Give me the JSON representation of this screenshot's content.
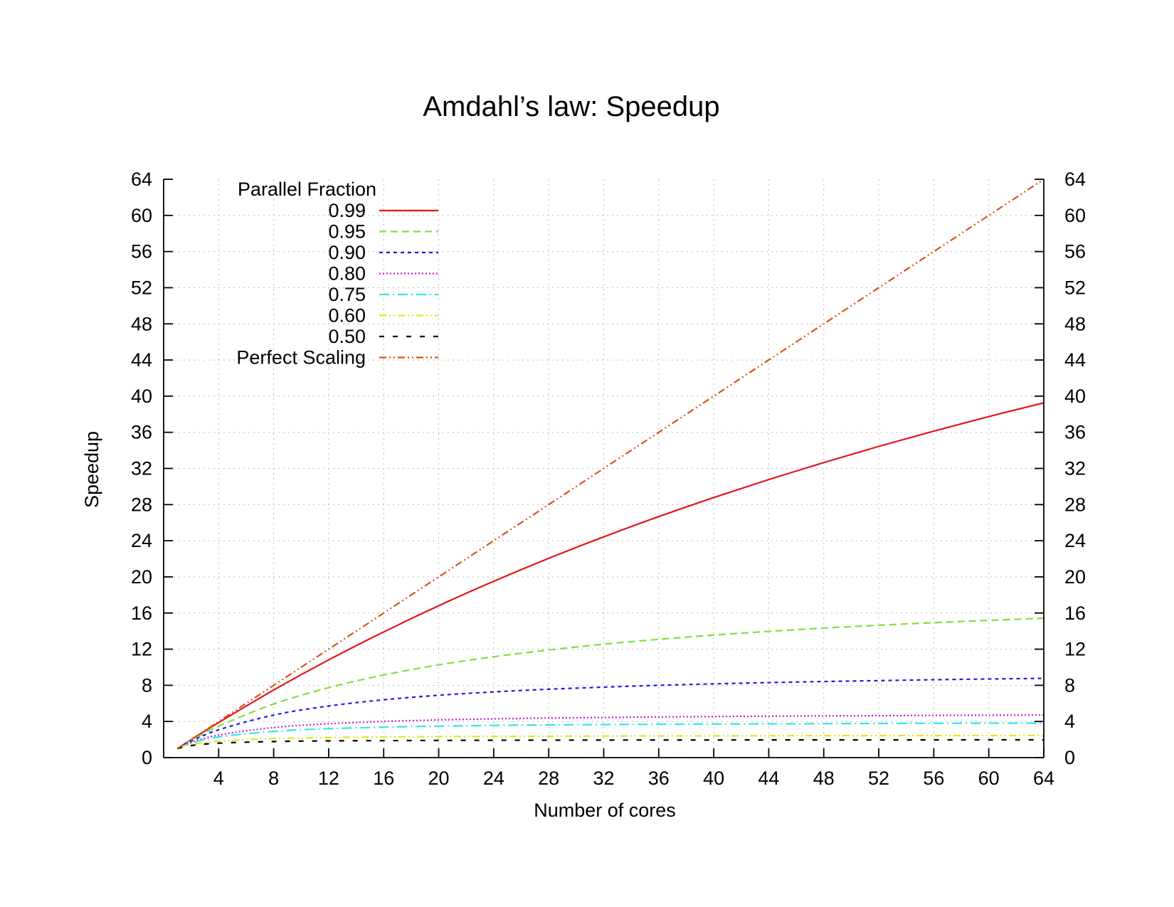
{
  "chart_data": {
    "type": "line",
    "title": "Amdahl’s law: Speedup",
    "title_color": "#e0161b",
    "xlabel": "Number of cores",
    "ylabel": "Speedup",
    "xlim": [
      0,
      64
    ],
    "ylim": [
      0,
      64
    ],
    "x_ticks": [
      4,
      8,
      12,
      16,
      20,
      24,
      28,
      32,
      36,
      40,
      44,
      48,
      52,
      56,
      60,
      64
    ],
    "y_ticks": [
      0,
      4,
      8,
      12,
      16,
      20,
      24,
      28,
      32,
      36,
      40,
      44,
      48,
      52,
      56,
      60,
      64
    ],
    "y2_ticks": [
      0,
      4,
      8,
      12,
      16,
      20,
      24,
      28,
      32,
      36,
      40,
      44,
      48,
      52,
      56,
      60,
      64
    ],
    "grid": true,
    "legend_title": "Parallel Fraction",
    "legend_position": "top-left",
    "x": [
      1,
      2,
      4,
      8,
      12,
      16,
      20,
      24,
      28,
      32,
      36,
      40,
      44,
      48,
      52,
      56,
      60,
      64
    ],
    "series": [
      {
        "name": "0.99",
        "color": "#e0161b",
        "dash": "solid",
        "values": [
          1.0,
          1.98,
          3.88,
          7.48,
          10.81,
          13.91,
          16.81,
          19.51,
          22.05,
          24.43,
          26.67,
          28.78,
          30.77,
          32.65,
          34.44,
          36.13,
          37.74,
          39.26
        ]
      },
      {
        "name": "0.95",
        "color": "#7fe03a",
        "dash": "dashed",
        "values": [
          1.0,
          1.9,
          3.48,
          5.93,
          7.74,
          9.14,
          10.26,
          11.16,
          11.91,
          12.55,
          13.09,
          13.56,
          13.97,
          14.33,
          14.65,
          14.93,
          15.19,
          15.42
        ]
      },
      {
        "name": "0.90",
        "color": "#1c1ce6",
        "dash": "short-dash",
        "values": [
          1.0,
          1.82,
          3.08,
          4.71,
          5.71,
          6.4,
          6.9,
          7.27,
          7.57,
          7.8,
          8.0,
          8.16,
          8.3,
          8.42,
          8.52,
          8.62,
          8.7,
          8.77
        ]
      },
      {
        "name": "0.80",
        "color": "#cc1ad9",
        "dash": "dotted",
        "values": [
          1.0,
          1.67,
          2.5,
          3.33,
          3.75,
          4.0,
          4.17,
          4.29,
          4.38,
          4.44,
          4.5,
          4.55,
          4.58,
          4.62,
          4.64,
          4.67,
          4.69,
          4.71
        ]
      },
      {
        "name": "0.75",
        "color": "#33e6e6",
        "dash": "dash-dot",
        "values": [
          1.0,
          1.6,
          2.29,
          2.91,
          3.2,
          3.37,
          3.48,
          3.56,
          3.62,
          3.66,
          3.69,
          3.72,
          3.74,
          3.76,
          3.78,
          3.8,
          3.81,
          3.82
        ]
      },
      {
        "name": "0.60",
        "color": "#e6e61c",
        "dash": "dash-dot-dot",
        "values": [
          1.0,
          1.43,
          1.82,
          2.11,
          2.22,
          2.29,
          2.33,
          2.35,
          2.37,
          2.39,
          2.4,
          2.41,
          2.42,
          2.43,
          2.43,
          2.44,
          2.44,
          2.45
        ]
      },
      {
        "name": "0.50",
        "color": "#000000",
        "dash": "sparse-dash",
        "values": [
          1.0,
          1.33,
          1.6,
          1.78,
          1.85,
          1.88,
          1.9,
          1.92,
          1.93,
          1.94,
          1.95,
          1.95,
          1.96,
          1.96,
          1.96,
          1.96,
          1.97,
          1.97
        ]
      },
      {
        "name": "Perfect Scaling",
        "color": "#d9531a",
        "dash": "dash-dot-dot",
        "values": [
          1,
          2,
          4,
          8,
          12,
          16,
          20,
          24,
          28,
          32,
          36,
          40,
          44,
          48,
          52,
          56,
          60,
          64
        ]
      }
    ]
  }
}
